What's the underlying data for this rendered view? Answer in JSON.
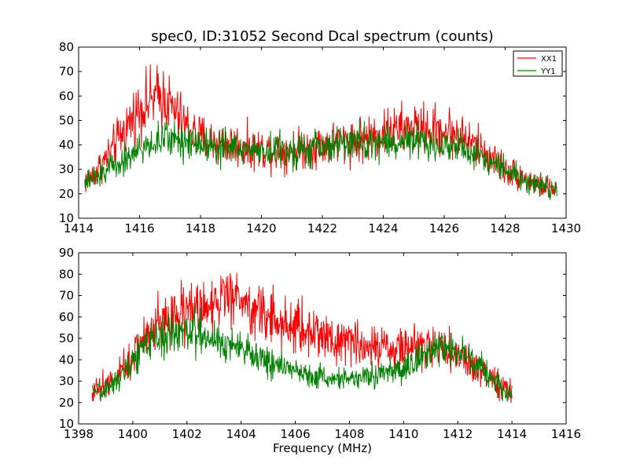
{
  "chart_data": [
    {
      "type": "line",
      "title": "spec0, ID:31052 Second Dcal spectrum (counts)",
      "xlabel": "",
      "ylabel": "",
      "xlim": [
        1414,
        1430
      ],
      "ylim": [
        10,
        80
      ],
      "xticks": [
        1414,
        1416,
        1418,
        1420,
        1422,
        1424,
        1426,
        1428,
        1430
      ],
      "yticks": [
        10,
        20,
        30,
        40,
        50,
        60,
        70,
        80
      ],
      "legend": {
        "placement": "top-right"
      },
      "grid": false,
      "series": [
        {
          "name": "XX1",
          "color": "#ff0000",
          "x": [
            1414.2,
            1414.5,
            1415.0,
            1415.5,
            1416.0,
            1416.5,
            1416.8,
            1417.0,
            1417.5,
            1418.0,
            1418.5,
            1419.0,
            1419.5,
            1420.0,
            1420.5,
            1421.0,
            1421.5,
            1422.0,
            1422.5,
            1423.0,
            1423.5,
            1424.0,
            1424.5,
            1425.0,
            1425.5,
            1426.0,
            1426.5,
            1427.0,
            1427.5,
            1428.0,
            1428.5,
            1429.0,
            1429.5,
            1429.7
          ],
          "y": [
            25,
            28,
            36,
            46,
            55,
            59,
            60,
            56,
            48,
            43,
            41,
            40,
            39,
            38,
            38,
            38,
            39,
            40,
            41,
            42,
            43,
            45,
            46,
            47,
            46,
            46,
            44,
            40,
            35,
            30,
            27,
            24,
            22,
            22
          ]
        },
        {
          "name": "YY1",
          "color": "#008000",
          "x": [
            1414.2,
            1414.5,
            1415.0,
            1415.5,
            1416.0,
            1416.5,
            1416.8,
            1417.0,
            1417.5,
            1418.0,
            1418.5,
            1419.0,
            1419.5,
            1420.0,
            1420.5,
            1421.0,
            1421.5,
            1422.0,
            1422.5,
            1423.0,
            1423.5,
            1424.0,
            1424.5,
            1425.0,
            1425.5,
            1426.0,
            1426.5,
            1427.0,
            1427.5,
            1428.0,
            1428.5,
            1429.0,
            1429.5,
            1429.7
          ],
          "y": [
            24,
            26,
            31,
            34,
            38,
            41,
            42,
            43,
            42,
            41,
            40,
            39,
            38,
            38,
            38,
            38,
            38,
            39,
            40,
            41,
            41,
            41,
            41,
            41,
            40,
            40,
            39,
            37,
            34,
            30,
            27,
            24,
            22,
            22
          ]
        }
      ]
    },
    {
      "type": "line",
      "title": "",
      "xlabel": "Frequency (MHz)",
      "ylabel": "",
      "xlim": [
        1398,
        1416
      ],
      "ylim": [
        10,
        90
      ],
      "xticks": [
        1398,
        1400,
        1402,
        1404,
        1406,
        1408,
        1410,
        1412,
        1414,
        1416
      ],
      "yticks": [
        10,
        20,
        30,
        40,
        50,
        60,
        70,
        80,
        90
      ],
      "grid": false,
      "series": [
        {
          "color": "#ff0000",
          "x": [
            1398.5,
            1399.0,
            1399.5,
            1400.0,
            1400.5,
            1401.0,
            1401.5,
            1402.0,
            1402.5,
            1403.0,
            1403.5,
            1404.0,
            1404.5,
            1405.0,
            1405.5,
            1406.0,
            1406.5,
            1407.0,
            1407.5,
            1408.0,
            1408.5,
            1409.0,
            1409.5,
            1410.0,
            1410.5,
            1411.0,
            1411.5,
            1412.0,
            1412.5,
            1413.0,
            1413.5,
            1414.0
          ],
          "y": [
            26,
            28,
            33,
            42,
            52,
            58,
            61,
            63,
            65,
            67,
            68,
            68,
            64,
            60,
            57,
            55,
            53,
            52,
            50,
            48,
            47,
            46,
            46,
            46,
            46,
            46,
            45,
            43,
            38,
            33,
            28,
            25
          ]
        },
        {
          "color": "#008000",
          "x": [
            1398.5,
            1399.0,
            1399.5,
            1400.0,
            1400.5,
            1401.0,
            1401.5,
            1402.0,
            1402.5,
            1403.0,
            1403.5,
            1404.0,
            1404.5,
            1405.0,
            1405.5,
            1406.0,
            1406.5,
            1407.0,
            1407.5,
            1408.0,
            1408.5,
            1409.0,
            1409.5,
            1410.0,
            1410.5,
            1411.0,
            1411.5,
            1412.0,
            1412.5,
            1413.0,
            1413.5,
            1414.0
          ],
          "y": [
            24,
            26,
            32,
            40,
            47,
            51,
            53,
            53,
            52,
            50,
            47,
            45,
            42,
            39,
            37,
            35,
            33,
            32,
            31,
            31,
            32,
            33,
            34,
            36,
            40,
            44,
            46,
            44,
            40,
            34,
            28,
            24
          ]
        }
      ]
    }
  ]
}
